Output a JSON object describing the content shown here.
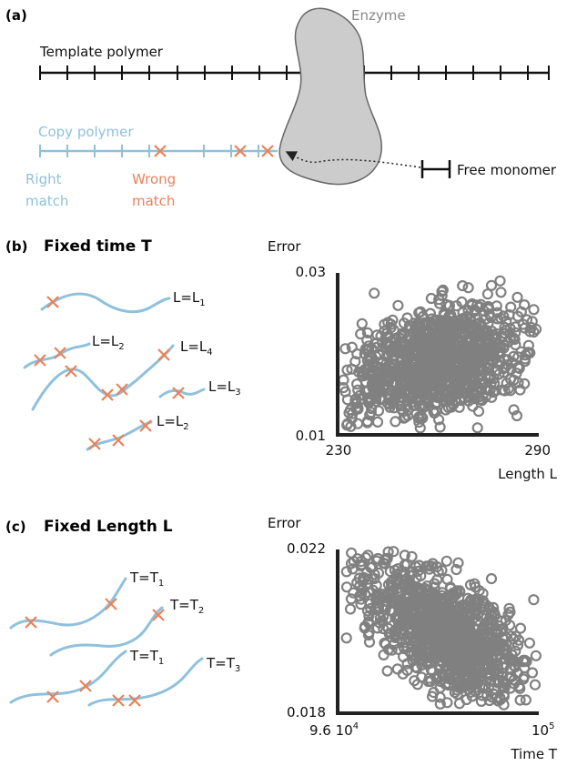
{
  "panel_a": {
    "label": "(a)",
    "enzyme_label": "Enzyme",
    "template_label": "Template polymer",
    "copy_label": "Copy polymer",
    "right_match_1": "Right",
    "right_match_2": "match",
    "wrong_match_1": "Wrong",
    "wrong_match_2": "match",
    "free_monomer_label": "Free monomer"
  },
  "panel_b": {
    "label": "(b)",
    "title": "Fixed time T",
    "strand_labels": [
      {
        "pre": "L=L",
        "sub": "1"
      },
      {
        "pre": "L=L",
        "sub": "2"
      },
      {
        "pre": "L=L",
        "sub": "4"
      },
      {
        "pre": "L=L",
        "sub": "3"
      },
      {
        "pre": "L=L",
        "sub": "2"
      }
    ]
  },
  "panel_c": {
    "label": "(c)",
    "title": "Fixed Length L",
    "strand_labels": [
      {
        "pre": "T=T",
        "sub": "1"
      },
      {
        "pre": "T=T",
        "sub": "2"
      },
      {
        "pre": "T=T",
        "sub": "1"
      },
      {
        "pre": "T=T",
        "sub": "3"
      }
    ]
  },
  "colors": {
    "copy": "#8fc1dc",
    "wrong": "#e8825a",
    "enzyme_fill": "#cccccc",
    "enzyme_stroke": "#666666",
    "enzyme_text": "#888888",
    "scatter": "#808080",
    "axis": "#222222"
  },
  "chart_data": [
    {
      "type": "scatter",
      "title": "",
      "xlabel": "Length L",
      "ylabel": "Error",
      "xlim": [
        230,
        290
      ],
      "ylim": [
        0.01,
        0.03
      ],
      "xtick_labels": [
        "230",
        "290"
      ],
      "ytick_labels": [
        "0.01",
        "0.03"
      ],
      "grid": false,
      "trend": {
        "x0": 240,
        "y0": 0.0155,
        "x1": 280,
        "y1": 0.022
      },
      "spread": {
        "along": 0.62,
        "across": 0.16
      },
      "points": [
        [
          231.5,
          0.0167
        ],
        [
          240.7,
          0.0273
        ],
        [
          287.4,
          0.0226
        ],
        [
          285.3,
          0.0235
        ],
        [
          288.5,
          0.0253
        ],
        [
          283.6,
          0.0268
        ],
        [
          274.7,
          0.0272
        ],
        [
          262.3,
          0.0259
        ],
        [
          246.9,
          0.0142
        ],
        [
          232.7,
          0.0143
        ],
        [
          281.6,
          0.0256
        ],
        [
          255.5,
          0.0168
        ],
        [
          268.0,
          0.0181
        ]
      ]
    },
    {
      "type": "scatter",
      "title": "",
      "xlabel": "Time T",
      "ylabel": "Error",
      "xscale": "log",
      "xlim": [
        96000,
        100000
      ],
      "ylim": [
        0.018,
        0.022
      ],
      "xtick_labels": [
        {
          "pre": "9.6 10",
          "sup": "4"
        },
        {
          "pre": "10",
          "sup": "5"
        }
      ],
      "ytick_labels": [
        "0.022",
        "0.018"
      ],
      "grid": false,
      "trend": {
        "x0": 96900,
        "y0": 0.0212,
        "x1": 99300,
        "y1": 0.01875
      },
      "spread": {
        "along": 0.62,
        "across": 0.13
      },
      "points": [
        [
          96408,
          0.0213
        ],
        [
          96880,
          0.02167
        ],
        [
          96920,
          0.02165
        ],
        [
          96560,
          0.02145
        ],
        [
          99280,
          0.01877
        ],
        [
          99600,
          0.01866
        ],
        [
          99500,
          0.01872
        ],
        [
          97700,
          0.02105
        ],
        [
          98150,
          0.01826
        ],
        [
          99180,
          0.0183
        ],
        [
          97100,
          0.0199
        ]
      ]
    }
  ]
}
